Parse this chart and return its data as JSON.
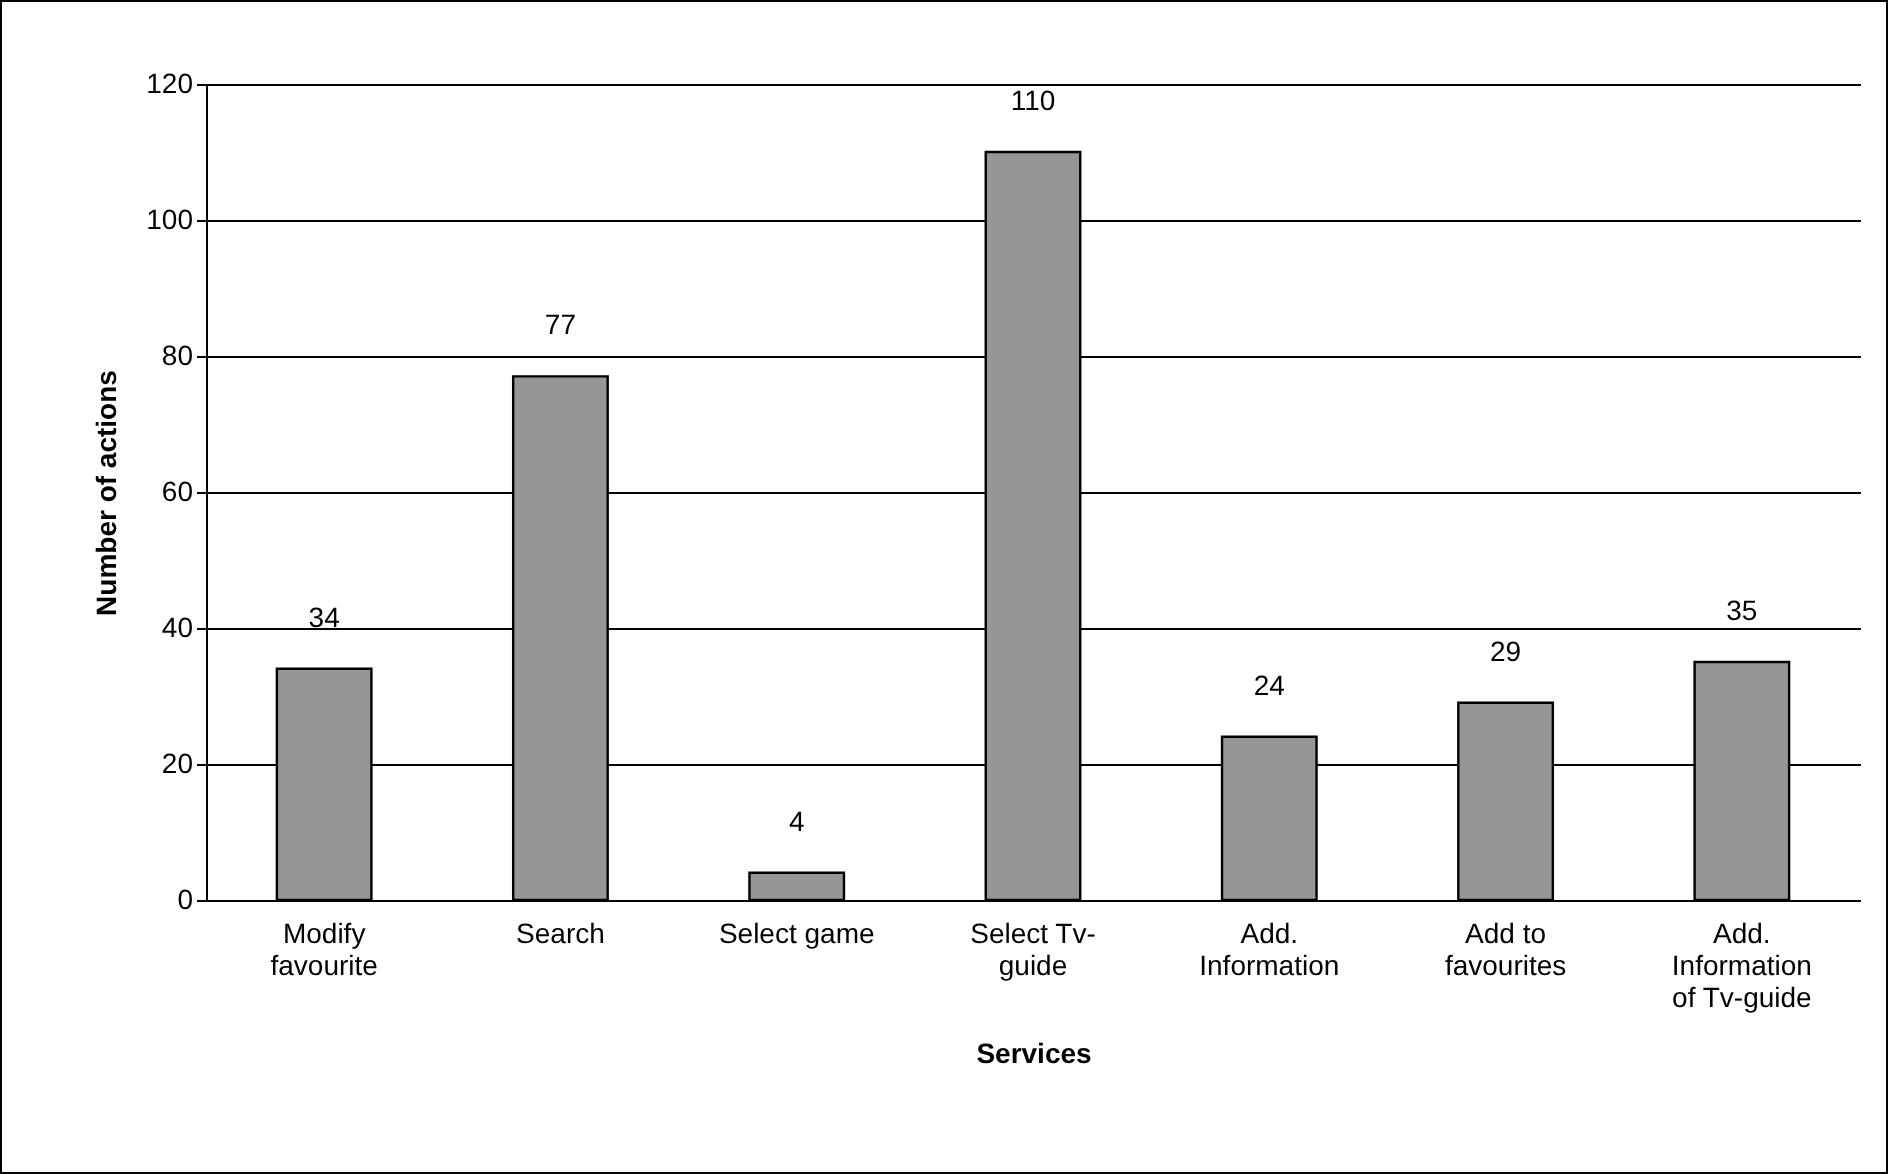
{
  "chart_data": {
    "type": "bar",
    "xlabel": "Services",
    "ylabel": "Number of actions",
    "categories": [
      "Modify favourite",
      "Search",
      "Select game",
      "Select Tv-guide",
      "Add. Information",
      "Add to favourites",
      "Add. Information of Tv-guide"
    ],
    "values": [
      34,
      77,
      4,
      110,
      24,
      29,
      35
    ],
    "color": "#969696",
    "ylim": [
      0,
      120
    ],
    "yticks": [
      0,
      20,
      40,
      60,
      80,
      100,
      120
    ],
    "grid": "y",
    "data_labels": true
  }
}
